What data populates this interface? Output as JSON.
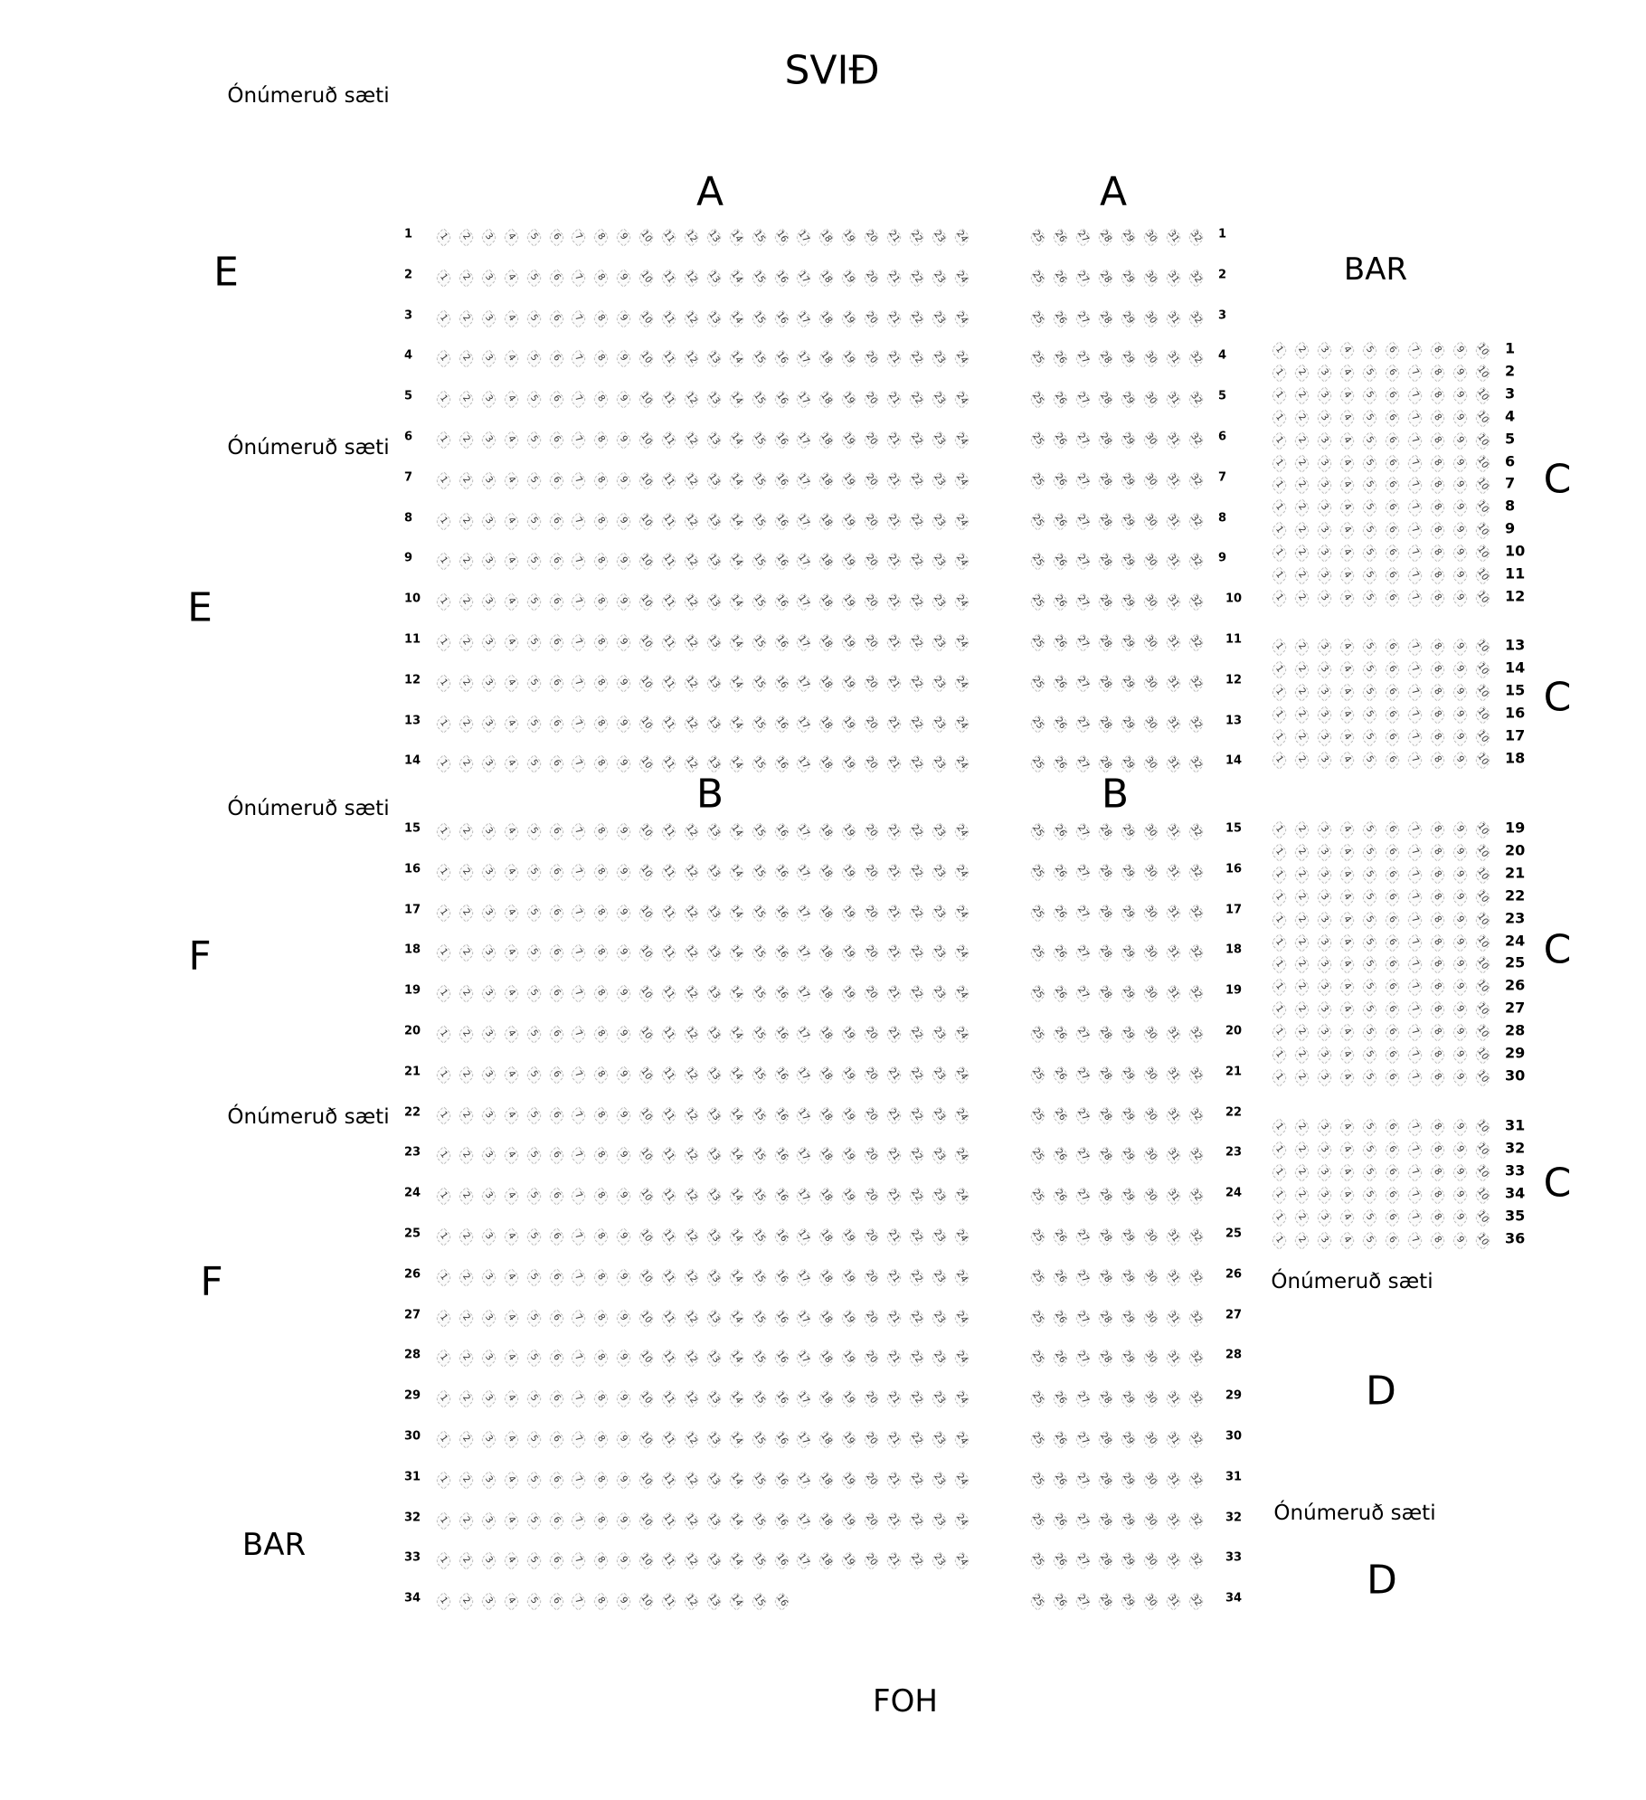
{
  "labels": {
    "stage": "SVIÐ",
    "foh": "FOH",
    "bar_top": "BAR",
    "bar_bottom": "BAR",
    "unnumbered": [
      "Ónúmeruð sæti",
      "Ónúmeruð sæti",
      "Ónúmeruð sæti",
      "Ónúmeruð sæti",
      "Ónúmeruð sæti",
      "Ónúmeruð sæti"
    ],
    "section_a_left": "A",
    "section_a_right": "A",
    "section_b_left": "B",
    "section_b_right": "B",
    "section_c": [
      "C",
      "C",
      "C",
      "C"
    ],
    "section_d": [
      "D",
      "D"
    ],
    "section_e": [
      "E",
      "E"
    ],
    "section_f": [
      "F",
      "F"
    ]
  },
  "main_floor": {
    "rows": [
      "1",
      "2",
      "3",
      "4",
      "5",
      "6",
      "7",
      "8",
      "9",
      "10",
      "11",
      "12",
      "13",
      "14",
      "15",
      "16",
      "17",
      "18",
      "19",
      "20",
      "21",
      "22",
      "23",
      "24",
      "25",
      "26",
      "27",
      "28",
      "29",
      "30",
      "31",
      "32",
      "33",
      "34"
    ],
    "left_block_seats": {
      "from": 1,
      "to": 24,
      "last_row_to": 16
    },
    "right_block_seats": {
      "from": 25,
      "to": 32
    }
  },
  "section_c_block": {
    "rows": [
      "1",
      "2",
      "3",
      "4",
      "5",
      "6",
      "7",
      "8",
      "9",
      "10",
      "11",
      "12",
      "13",
      "14",
      "15",
      "16",
      "17",
      "18",
      "19",
      "20",
      "21",
      "22",
      "23",
      "24",
      "25",
      "26",
      "27",
      "28",
      "29",
      "30",
      "31",
      "32",
      "33",
      "34",
      "35",
      "36"
    ],
    "seats": {
      "from": 1,
      "to": 10
    }
  }
}
